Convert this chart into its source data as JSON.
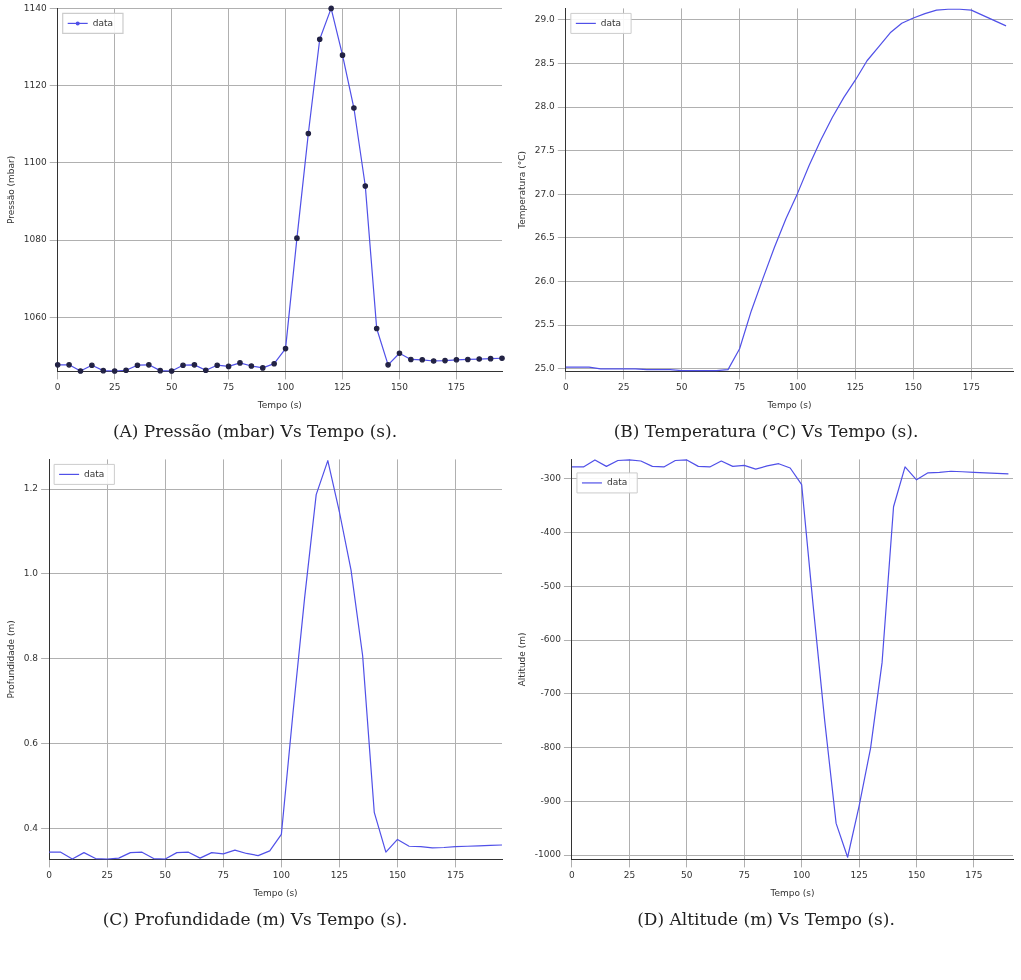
{
  "chart_data": [
    {
      "type": "line",
      "xlabel": "Tempo (s)",
      "ylabel": "Pressão (mbar)",
      "annotations": [
        "(A) Pressão (mbar) Vs Tempo (s)."
      ],
      "legend": "top left",
      "grid": true,
      "marker": "circle",
      "line_style": "solid",
      "x": [
        0,
        5,
        10,
        15,
        20,
        25,
        30,
        35,
        40,
        45,
        50,
        55,
        60,
        65,
        70,
        75,
        80,
        85,
        90,
        95,
        100,
        105,
        110,
        115,
        120,
        125,
        130,
        135,
        140,
        145,
        150,
        155,
        160,
        165,
        170,
        175,
        180,
        185,
        190,
        195
      ],
      "xlim": [
        0,
        195
      ],
      "xticks": [
        0,
        25,
        50,
        75,
        100,
        125,
        150,
        175
      ],
      "ylim": [
        1046,
        1140
      ],
      "yticks": [
        1060,
        1080,
        1100,
        1120,
        1140
      ],
      "series": [
        {
          "name": "data",
          "color": "#5050e8",
          "values": [
            1047.7,
            1047.7,
            1046.1,
            1047.6,
            1046.2,
            1046.1,
            1046.3,
            1047.6,
            1047.7,
            1046.2,
            1046.1,
            1047.6,
            1047.7,
            1046.3,
            1047.6,
            1047.3,
            1048.2,
            1047.4,
            1046.9,
            1048.0,
            1051.9,
            1080.5,
            1107.6,
            1132.0,
            1140,
            1127.9,
            1114.2,
            1094.0,
            1057.1,
            1047.7,
            1050.7,
            1049.1,
            1049.0,
            1048.7,
            1048.8,
            1049.0,
            1049.1,
            1049.2,
            1049.3,
            1049.4
          ]
        }
      ]
    },
    {
      "type": "line",
      "xlabel": "Tempo (s)",
      "ylabel": "Temperatura (°C)",
      "annotations": [
        "(B) Temperatura (°C) Vs Tempo (s)."
      ],
      "legend": "top left",
      "grid": true,
      "line_style": "solid",
      "x": [
        0,
        5,
        10,
        15,
        20,
        25,
        30,
        35,
        40,
        45,
        50,
        55,
        60,
        65,
        70,
        75,
        80,
        85,
        90,
        95,
        100,
        105,
        110,
        115,
        120,
        125,
        130,
        135,
        140,
        145,
        150,
        155,
        160,
        165,
        170,
        175,
        180,
        185,
        190
      ],
      "xlim": [
        0,
        193
      ],
      "xticks": [
        0,
        25,
        50,
        75,
        100,
        125,
        150,
        175
      ],
      "ylim": [
        24.97,
        29.13
      ],
      "yticks": [
        {
          "value": 25,
          "label": "25.0"
        },
        25.5,
        {
          "value": 26,
          "label": "26.0"
        },
        26.5,
        {
          "value": 27,
          "label": "27.0"
        },
        27.5,
        {
          "value": 28,
          "label": "28.0"
        },
        28.5,
        {
          "value": 29,
          "label": "29.0"
        }
      ],
      "series": [
        {
          "name": "data",
          "color": "#5050e8",
          "values": [
            25.02,
            25.02,
            25.02,
            25.0,
            25.0,
            25.0,
            25.0,
            24.99,
            24.99,
            24.99,
            24.98,
            24.98,
            24.98,
            24.98,
            24.99,
            25.23,
            25.66,
            26.03,
            26.39,
            26.72,
            27.01,
            27.33,
            27.62,
            27.88,
            28.11,
            28.31,
            28.53,
            28.69,
            28.85,
            28.96,
            29.02,
            29.07,
            29.11,
            29.12,
            29.12,
            29.11,
            29.05,
            28.99,
            28.93
          ]
        }
      ]
    },
    {
      "type": "line",
      "xlabel": "Tempo (s)",
      "ylabel": "Profundidade (m)",
      "annotations": [
        "(C) Profundidade (m) Vs Tempo (s)."
      ],
      "legend": "top left",
      "grid": true,
      "line_style": "solid",
      "x": [
        0,
        5,
        10,
        15,
        20,
        25,
        30,
        35,
        40,
        45,
        50,
        55,
        60,
        65,
        70,
        75,
        80,
        85,
        90,
        95,
        100,
        105,
        110,
        115,
        120,
        125,
        130,
        135,
        140,
        145,
        150,
        155,
        160,
        165,
        170,
        175,
        180,
        185,
        190,
        195
      ],
      "xlim": [
        0,
        195
      ],
      "xticks": [
        0,
        25,
        50,
        75,
        100,
        125,
        150,
        175
      ],
      "ylim": [
        0.327,
        1.27
      ],
      "yticks": [
        0.4,
        0.6,
        0.8,
        {
          "value": 1,
          "label": "1.0"
        },
        1.2
      ],
      "series": [
        {
          "name": "data",
          "color": "#5050e8",
          "values": [
            0.344,
            0.344,
            0.328,
            0.343,
            0.329,
            0.328,
            0.33,
            0.343,
            0.344,
            0.329,
            0.328,
            0.343,
            0.344,
            0.33,
            0.343,
            0.34,
            0.349,
            0.341,
            0.336,
            0.347,
            0.386,
            0.672,
            0.943,
            1.187,
            1.267,
            1.146,
            1.009,
            0.807,
            0.438,
            0.344,
            0.374,
            0.358,
            0.357,
            0.354,
            0.355,
            0.357,
            0.358,
            0.359,
            0.36,
            0.361
          ]
        }
      ]
    },
    {
      "type": "line",
      "xlabel": "Tempo (s)",
      "ylabel": "Altitude (m)",
      "annotations": [
        "(D) Altitude (m) Vs Tempo (s)."
      ],
      "legend": "top left",
      "grid": true,
      "line_style": "solid",
      "x": [
        0,
        5,
        10,
        15,
        20,
        25,
        30,
        35,
        40,
        45,
        50,
        55,
        60,
        65,
        70,
        75,
        80,
        85,
        90,
        95,
        100,
        105,
        110,
        115,
        120,
        125,
        130,
        135,
        140,
        145,
        150,
        155,
        160,
        165,
        170,
        175,
        180,
        185,
        190
      ],
      "xlim": [
        0,
        192
      ],
      "xticks": [
        0,
        25,
        50,
        75,
        100,
        125,
        150,
        175
      ],
      "ylim": [
        -1008,
        -264
      ],
      "yticks": [
        -1000,
        -900,
        -800,
        -700,
        -600,
        -500,
        -400,
        -300
      ],
      "series": [
        {
          "name": "data",
          "color": "#5050e8",
          "values": [
            -278,
            -278,
            -265,
            -277,
            -266,
            -265,
            -267,
            -277,
            -278,
            -266,
            -265,
            -277,
            -278,
            -267,
            -277,
            -275,
            -282,
            -276,
            -272,
            -280,
            -311,
            -536,
            -749,
            -941,
            -1004,
            -909,
            -801,
            -642,
            -352,
            -278,
            -302,
            -289,
            -288,
            -286,
            -287,
            -288,
            -289,
            -290,
            -291
          ]
        }
      ]
    }
  ]
}
